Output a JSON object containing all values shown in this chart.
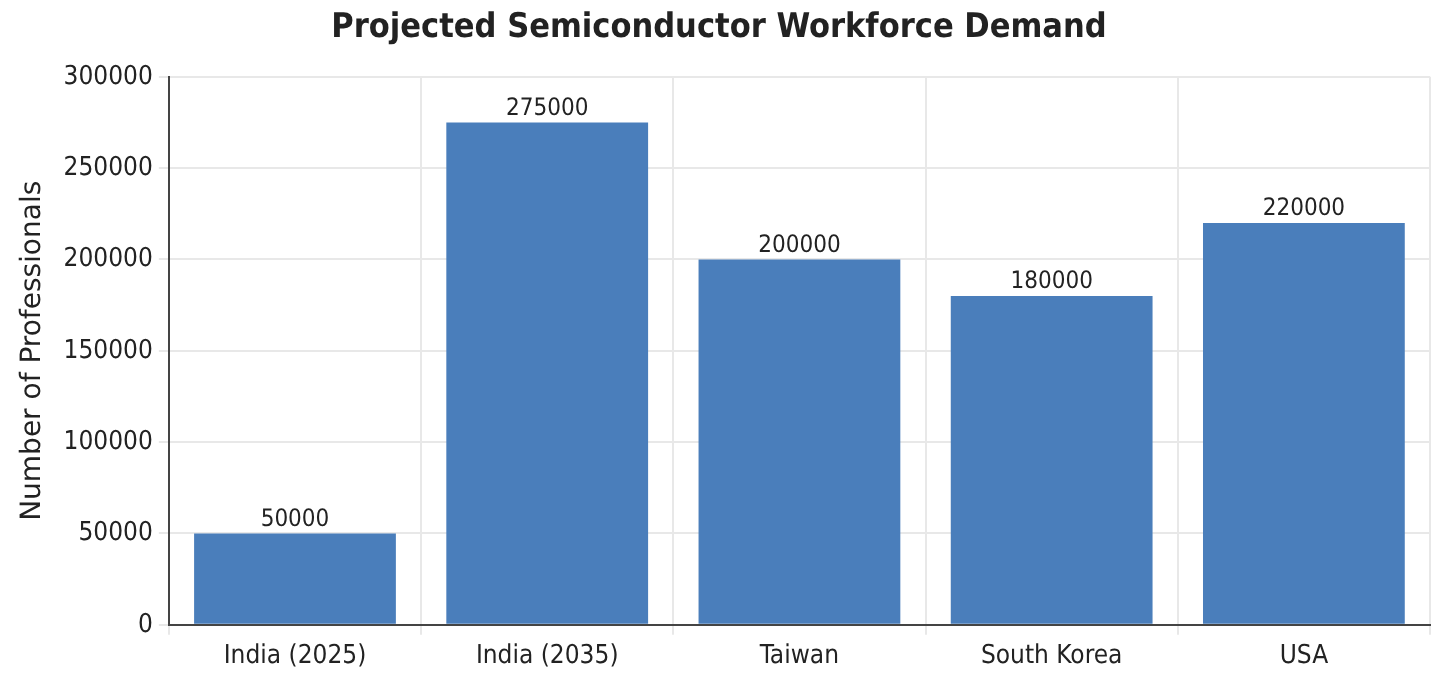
{
  "chart_data": {
    "type": "bar",
    "title": "Projected Semiconductor Workforce Demand",
    "ylabel": "Number of Professionals",
    "categories": [
      "India (2025)",
      "India (2035)",
      "Taiwan",
      "South Korea",
      "USA"
    ],
    "values": [
      50000,
      275000,
      200000,
      180000,
      220000
    ],
    "color": "#4a7ebb",
    "ylim": [
      0,
      300000
    ],
    "yticks": [
      0,
      50000,
      100000,
      150000,
      200000,
      250000,
      300000
    ],
    "grid": true,
    "data_labels": true
  }
}
